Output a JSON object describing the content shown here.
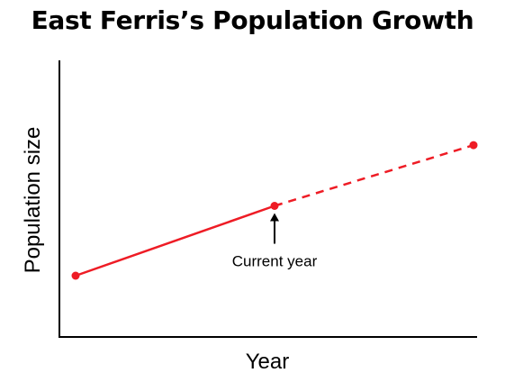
{
  "chart_data": {
    "type": "line",
    "title": "East Ferris’s Population Growth",
    "xlabel": "Year",
    "ylabel": "Population size",
    "grid": false,
    "legend": "none",
    "colors": {
      "series": "#ee1c25",
      "axis": "#000000"
    },
    "series": [
      {
        "style": "solid",
        "points": [
          {
            "x": 0,
            "y": 0
          },
          {
            "x": 1,
            "y": 1
          }
        ]
      },
      {
        "style": "dashed",
        "points": [
          {
            "x": 1,
            "y": 1
          },
          {
            "x": 2,
            "y": 1.87
          }
        ]
      }
    ],
    "annotations": [
      {
        "text": "Current year",
        "x": 1,
        "y": 1,
        "arrow": true
      }
    ]
  }
}
